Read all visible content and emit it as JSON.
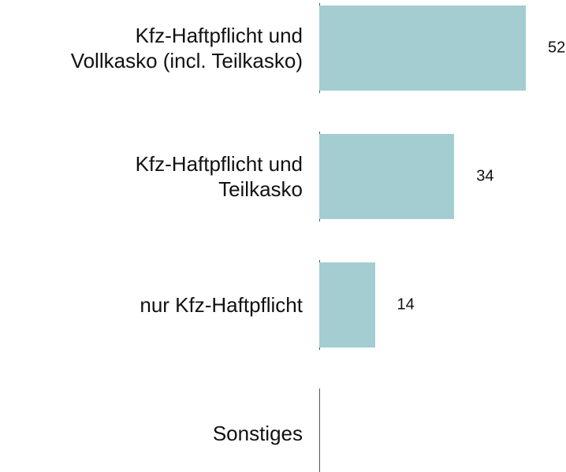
{
  "chart_data": {
    "type": "bar",
    "orientation": "horizontal",
    "categories": [
      "Kfz-Haftpflicht und\nVollkasko (incl. Teilkasko)",
      "Kfz-Haftpflicht und\nTeilkasko",
      "nur Kfz-Haftpflicht",
      "Sonstiges"
    ],
    "values": [
      52,
      34,
      14,
      null
    ],
    "color": "#a3cdd0",
    "xlim": [
      0,
      52
    ]
  }
}
